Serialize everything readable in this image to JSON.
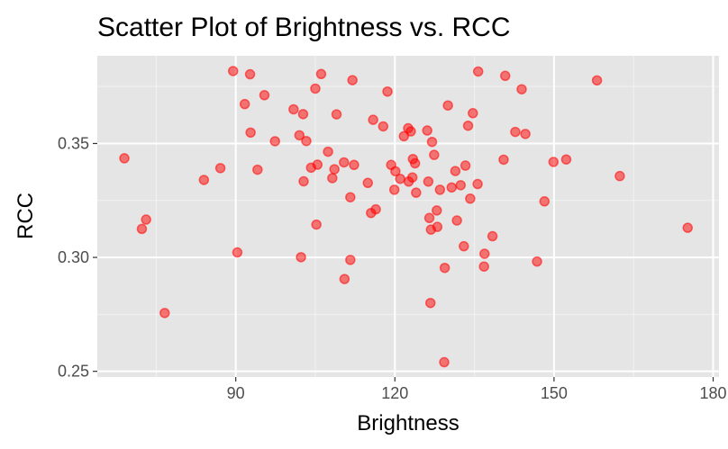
{
  "chart_data": {
    "type": "scatter",
    "title": "Scatter Plot of Brightness vs. RCC",
    "xlabel": "Brightness",
    "ylabel": "RCC",
    "xlim": [
      63.9,
      181.1
    ],
    "ylim": [
      0.2475,
      0.3885
    ],
    "x_ticks": [
      {
        "value": 90,
        "label": "90"
      },
      {
        "value": 120,
        "label": "120"
      },
      {
        "value": 150,
        "label": "150"
      },
      {
        "value": 180,
        "label": "180"
      }
    ],
    "y_ticks": [
      {
        "value": 0.25,
        "label": "0.25"
      },
      {
        "value": 0.3,
        "label": "0.30"
      },
      {
        "value": 0.35,
        "label": "0.35"
      }
    ],
    "grid": true,
    "background": "#e5e5e5",
    "point_color": "#ff0000",
    "points": [
      {
        "x": 69.0,
        "y": 0.3435
      },
      {
        "x": 72.3,
        "y": 0.3125
      },
      {
        "x": 73.1,
        "y": 0.3166
      },
      {
        "x": 76.6,
        "y": 0.2756
      },
      {
        "x": 84.0,
        "y": 0.334
      },
      {
        "x": 87.1,
        "y": 0.3392
      },
      {
        "x": 89.5,
        "y": 0.3818
      },
      {
        "x": 90.3,
        "y": 0.3022
      },
      {
        "x": 91.7,
        "y": 0.3673
      },
      {
        "x": 92.7,
        "y": 0.3804
      },
      {
        "x": 92.8,
        "y": 0.3548
      },
      {
        "x": 94.1,
        "y": 0.3385
      },
      {
        "x": 95.4,
        "y": 0.3712
      },
      {
        "x": 97.4,
        "y": 0.351
      },
      {
        "x": 100.9,
        "y": 0.365
      },
      {
        "x": 102.0,
        "y": 0.3536
      },
      {
        "x": 102.3,
        "y": 0.3001
      },
      {
        "x": 102.7,
        "y": 0.3629
      },
      {
        "x": 102.8,
        "y": 0.3334
      },
      {
        "x": 103.3,
        "y": 0.3511
      },
      {
        "x": 104.2,
        "y": 0.3394
      },
      {
        "x": 105.0,
        "y": 0.3741
      },
      {
        "x": 105.2,
        "y": 0.3144
      },
      {
        "x": 105.4,
        "y": 0.3407
      },
      {
        "x": 106.1,
        "y": 0.3805
      },
      {
        "x": 107.4,
        "y": 0.3464
      },
      {
        "x": 108.2,
        "y": 0.3348
      },
      {
        "x": 108.6,
        "y": 0.3387
      },
      {
        "x": 109.0,
        "y": 0.3628
      },
      {
        "x": 110.4,
        "y": 0.3417
      },
      {
        "x": 110.5,
        "y": 0.2905
      },
      {
        "x": 111.6,
        "y": 0.2989
      },
      {
        "x": 111.6,
        "y": 0.3264
      },
      {
        "x": 112.0,
        "y": 0.3778
      },
      {
        "x": 112.3,
        "y": 0.3406
      },
      {
        "x": 114.9,
        "y": 0.3327
      },
      {
        "x": 115.5,
        "y": 0.3195
      },
      {
        "x": 115.9,
        "y": 0.3604
      },
      {
        "x": 116.4,
        "y": 0.3211
      },
      {
        "x": 117.8,
        "y": 0.3575
      },
      {
        "x": 118.6,
        "y": 0.3728
      },
      {
        "x": 119.3,
        "y": 0.3406
      },
      {
        "x": 119.9,
        "y": 0.3297
      },
      {
        "x": 120.1,
        "y": 0.3378
      },
      {
        "x": 121.0,
        "y": 0.3345
      },
      {
        "x": 121.7,
        "y": 0.3532
      },
      {
        "x": 122.5,
        "y": 0.3567
      },
      {
        "x": 122.6,
        "y": 0.3333
      },
      {
        "x": 123.0,
        "y": 0.3553
      },
      {
        "x": 123.3,
        "y": 0.3351
      },
      {
        "x": 123.4,
        "y": 0.3432
      },
      {
        "x": 123.8,
        "y": 0.3413
      },
      {
        "x": 124.0,
        "y": 0.3284
      },
      {
        "x": 126.1,
        "y": 0.3557
      },
      {
        "x": 126.3,
        "y": 0.3333
      },
      {
        "x": 126.5,
        "y": 0.3173
      },
      {
        "x": 126.7,
        "y": 0.28
      },
      {
        "x": 126.8,
        "y": 0.3122
      },
      {
        "x": 127.0,
        "y": 0.3507
      },
      {
        "x": 127.4,
        "y": 0.345
      },
      {
        "x": 127.9,
        "y": 0.3206
      },
      {
        "x": 128.0,
        "y": 0.3134
      },
      {
        "x": 128.5,
        "y": 0.3297
      },
      {
        "x": 129.3,
        "y": 0.254
      },
      {
        "x": 129.4,
        "y": 0.2954
      },
      {
        "x": 130.0,
        "y": 0.3667
      },
      {
        "x": 130.7,
        "y": 0.3307
      },
      {
        "x": 131.4,
        "y": 0.3379
      },
      {
        "x": 131.7,
        "y": 0.3162
      },
      {
        "x": 132.4,
        "y": 0.3317
      },
      {
        "x": 133.0,
        "y": 0.3049
      },
      {
        "x": 133.3,
        "y": 0.3403
      },
      {
        "x": 133.8,
        "y": 0.3578
      },
      {
        "x": 134.2,
        "y": 0.3258
      },
      {
        "x": 134.7,
        "y": 0.3633
      },
      {
        "x": 135.6,
        "y": 0.3322
      },
      {
        "x": 135.7,
        "y": 0.3816
      },
      {
        "x": 136.8,
        "y": 0.296
      },
      {
        "x": 136.9,
        "y": 0.3016
      },
      {
        "x": 138.4,
        "y": 0.3093
      },
      {
        "x": 140.5,
        "y": 0.3429
      },
      {
        "x": 140.8,
        "y": 0.3797
      },
      {
        "x": 142.7,
        "y": 0.3551
      },
      {
        "x": 143.9,
        "y": 0.3738
      },
      {
        "x": 144.6,
        "y": 0.3542
      },
      {
        "x": 146.8,
        "y": 0.2982
      },
      {
        "x": 148.2,
        "y": 0.3246
      },
      {
        "x": 149.9,
        "y": 0.3419
      },
      {
        "x": 152.3,
        "y": 0.343
      },
      {
        "x": 158.1,
        "y": 0.3777
      },
      {
        "x": 162.4,
        "y": 0.3357
      },
      {
        "x": 175.2,
        "y": 0.313
      }
    ]
  }
}
